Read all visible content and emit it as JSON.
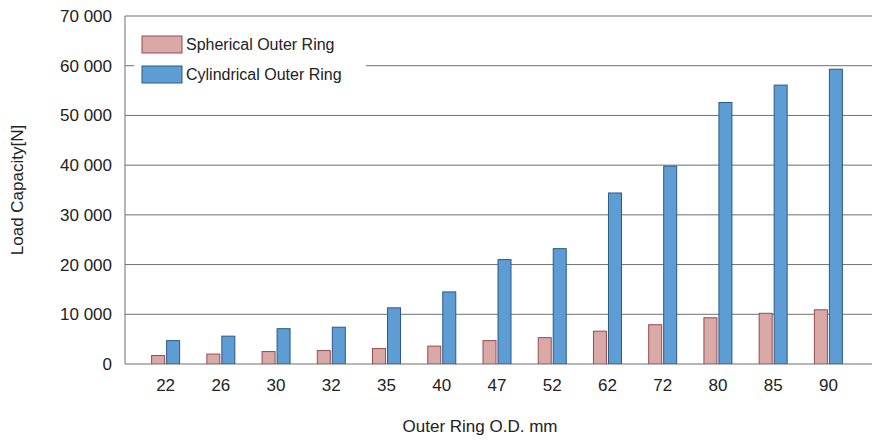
{
  "chart_data": {
    "type": "bar",
    "x_label": "Outer Ring O.D. mm",
    "y_label": "Load Capacity[N]",
    "categories": [
      "22",
      "26",
      "30",
      "32",
      "35",
      "40",
      "47",
      "52",
      "62",
      "72",
      "80",
      "85",
      "90"
    ],
    "series": [
      {
        "name": "Spherical Outer Ring",
        "color": "#d9a9a7",
        "values": [
          1700,
          2000,
          2500,
          2700,
          3100,
          3600,
          4700,
          5300,
          6600,
          7900,
          9300,
          10200,
          10900
        ]
      },
      {
        "name": "Cylindrical Outer Ring",
        "color": "#5e9dd4",
        "values": [
          4700,
          5600,
          7100,
          7400,
          11300,
          14500,
          21000,
          23200,
          34400,
          39800,
          52600,
          56100,
          59300
        ]
      }
    ],
    "ylim": [
      0,
      70000
    ],
    "yticks": [
      0,
      {
        "value": 10000,
        "label": "10 000"
      },
      {
        "value": 20000,
        "label": "20 000"
      },
      {
        "value": 30000,
        "label": "30 000"
      },
      {
        "value": 40000,
        "label": "40 000"
      },
      {
        "value": 50000,
        "label": "50 000"
      },
      {
        "value": 60000,
        "label": "60 000"
      },
      {
        "value": 70000,
        "label": "70 000"
      }
    ],
    "grid": true,
    "legend": "upper left"
  }
}
